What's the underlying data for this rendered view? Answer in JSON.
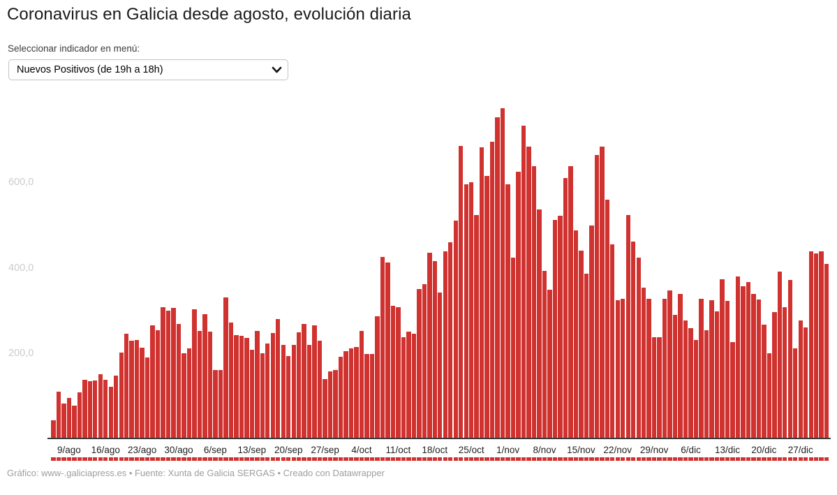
{
  "header": {
    "title": "Coronavirus en Galicia desde agosto, evolución diaria",
    "selector_caption": "Seleccionar indicador en menú:",
    "selector_value": "Nuevos Positivos (de 19h a 18h)"
  },
  "chart_data": {
    "type": "bar",
    "title": "Coronavirus en Galicia desde agosto, evolución diaria",
    "series_name": "Nuevos Positivos (de 19h a 18h)",
    "bar_color": "#d0322f",
    "grid": false,
    "legend_position": "none",
    "ylim": [
      0,
      790
    ],
    "y_ticks": [
      {
        "value": 200,
        "label": "200,0"
      },
      {
        "value": 400,
        "label": "400,0"
      },
      {
        "value": 600,
        "label": "600,0"
      }
    ],
    "x_tick_labels": [
      "9/ago",
      "16/ago",
      "23/ago",
      "30/ago",
      "6/sep",
      "13/sep",
      "20/sep",
      "27/sep",
      "4/oct",
      "11/oct",
      "18/oct",
      "25/oct",
      "1/nov",
      "8/nov",
      "15/nov",
      "22/nov",
      "29/nov",
      "6/dic",
      "13/dic",
      "20/dic",
      "27/dic"
    ],
    "x_tick_indices": [
      3,
      10,
      17,
      24,
      31,
      38,
      45,
      52,
      59,
      66,
      73,
      80,
      87,
      94,
      101,
      108,
      115,
      122,
      129,
      136,
      143
    ],
    "values": [
      42,
      110,
      82,
      95,
      77,
      108,
      138,
      134,
      136,
      150,
      137,
      121,
      148,
      202,
      246,
      229,
      231,
      213,
      190,
      265,
      253,
      308,
      300,
      306,
      269,
      200,
      211,
      303,
      252,
      291,
      251,
      160,
      160,
      330,
      272,
      242,
      240,
      235,
      208,
      252,
      200,
      223,
      247,
      280,
      220,
      193,
      220,
      249,
      268,
      219,
      265,
      229,
      139,
      157,
      161,
      192,
      205,
      211,
      215,
      252,
      198,
      198,
      286,
      426,
      413,
      311,
      307,
      237,
      250,
      246,
      351,
      361,
      436,
      416,
      342,
      439,
      460,
      511,
      685,
      595,
      601,
      524,
      682,
      616,
      696,
      753,
      774,
      595,
      424,
      625,
      733,
      684,
      638,
      537,
      393,
      349,
      513,
      522,
      610,
      638,
      488,
      440,
      386,
      499,
      664,
      684,
      559,
      455,
      324,
      327,
      523,
      462,
      424,
      353,
      327,
      237,
      238,
      327,
      347,
      289,
      338,
      277,
      258,
      231,
      327,
      253,
      324,
      298,
      373,
      322,
      226,
      380,
      356,
      367,
      338,
      326,
      267,
      200,
      297,
      391,
      308,
      372,
      211,
      277,
      260,
      438,
      434,
      438,
      409
    ]
  },
  "footer": {
    "credit": "Gráfico: www-.galiciapress.es • Fuente: Xunta de Galicia SERGAS • Creado con Datawrapper"
  }
}
